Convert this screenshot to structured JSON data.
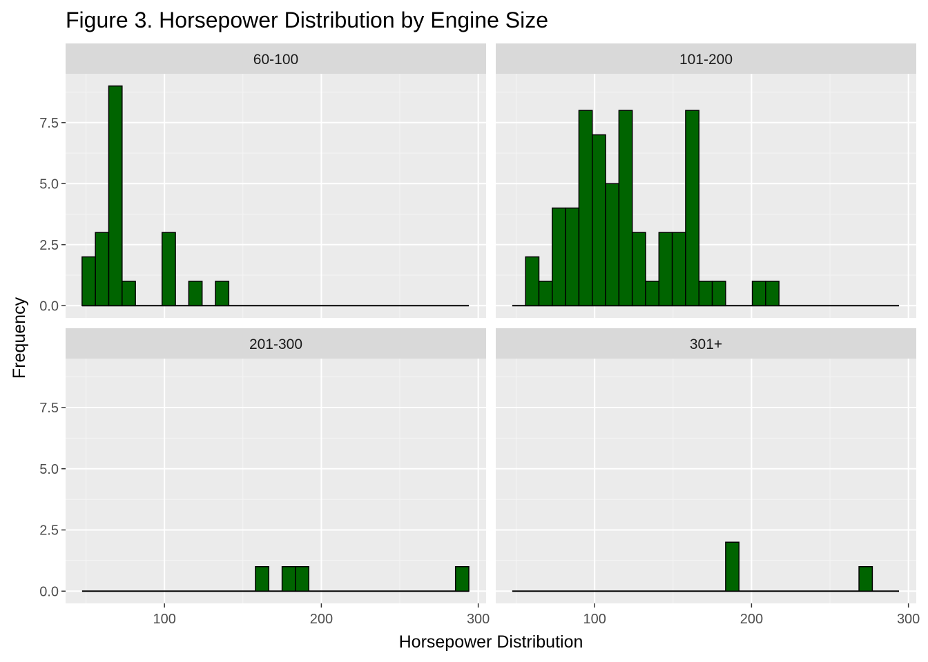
{
  "chart_data": {
    "type": "bar",
    "title": "Figure 3. Horsepower Distribution by Engine Size",
    "xlabel": "Horsepower Distribution",
    "ylabel": "Frequency",
    "xlim": [
      37,
      305
    ],
    "ylim": [
      -0.5,
      9.5
    ],
    "x_ticks": [
      100,
      200,
      300
    ],
    "y_ticks": [
      0.0,
      2.5,
      5.0,
      7.5
    ],
    "x_tick_labels": [
      "100",
      "200",
      "300"
    ],
    "y_tick_labels": [
      "0.0",
      "2.5",
      "5.0",
      "7.5"
    ],
    "bin_start": 47.5,
    "bin_width": 8.5,
    "n_bins": 29,
    "fill_color": "#006400",
    "outline_color": "#000000",
    "grid": true,
    "legend": "none",
    "facets": [
      {
        "label": "60-100",
        "bins": [
          {
            "x": 51.75,
            "y": 2
          },
          {
            "x": 60.25,
            "y": 3
          },
          {
            "x": 68.75,
            "y": 9
          },
          {
            "x": 77.25,
            "y": 1
          },
          {
            "x": 102.75,
            "y": 3
          },
          {
            "x": 119.75,
            "y": 1
          },
          {
            "x": 136.75,
            "y": 1
          }
        ]
      },
      {
        "label": "101-200",
        "bins": [
          {
            "x": 60.25,
            "y": 2
          },
          {
            "x": 68.75,
            "y": 1
          },
          {
            "x": 77.25,
            "y": 4
          },
          {
            "x": 85.75,
            "y": 4
          },
          {
            "x": 94.25,
            "y": 8
          },
          {
            "x": 102.75,
            "y": 7
          },
          {
            "x": 111.25,
            "y": 5
          },
          {
            "x": 119.75,
            "y": 8
          },
          {
            "x": 128.25,
            "y": 3
          },
          {
            "x": 136.75,
            "y": 1
          },
          {
            "x": 145.25,
            "y": 3
          },
          {
            "x": 153.75,
            "y": 3
          },
          {
            "x": 162.25,
            "y": 8
          },
          {
            "x": 170.75,
            "y": 1
          },
          {
            "x": 179.25,
            "y": 1
          },
          {
            "x": 204.75,
            "y": 1
          },
          {
            "x": 213.25,
            "y": 1
          }
        ]
      },
      {
        "label": "201-300",
        "bins": [
          {
            "x": 162.25,
            "y": 1
          },
          {
            "x": 179.25,
            "y": 1
          },
          {
            "x": 187.75,
            "y": 1
          },
          {
            "x": 289.75,
            "y": 1
          }
        ]
      },
      {
        "label": "301+",
        "bins": [
          {
            "x": 187.75,
            "y": 2
          },
          {
            "x": 272.75,
            "y": 1
          }
        ]
      }
    ]
  }
}
